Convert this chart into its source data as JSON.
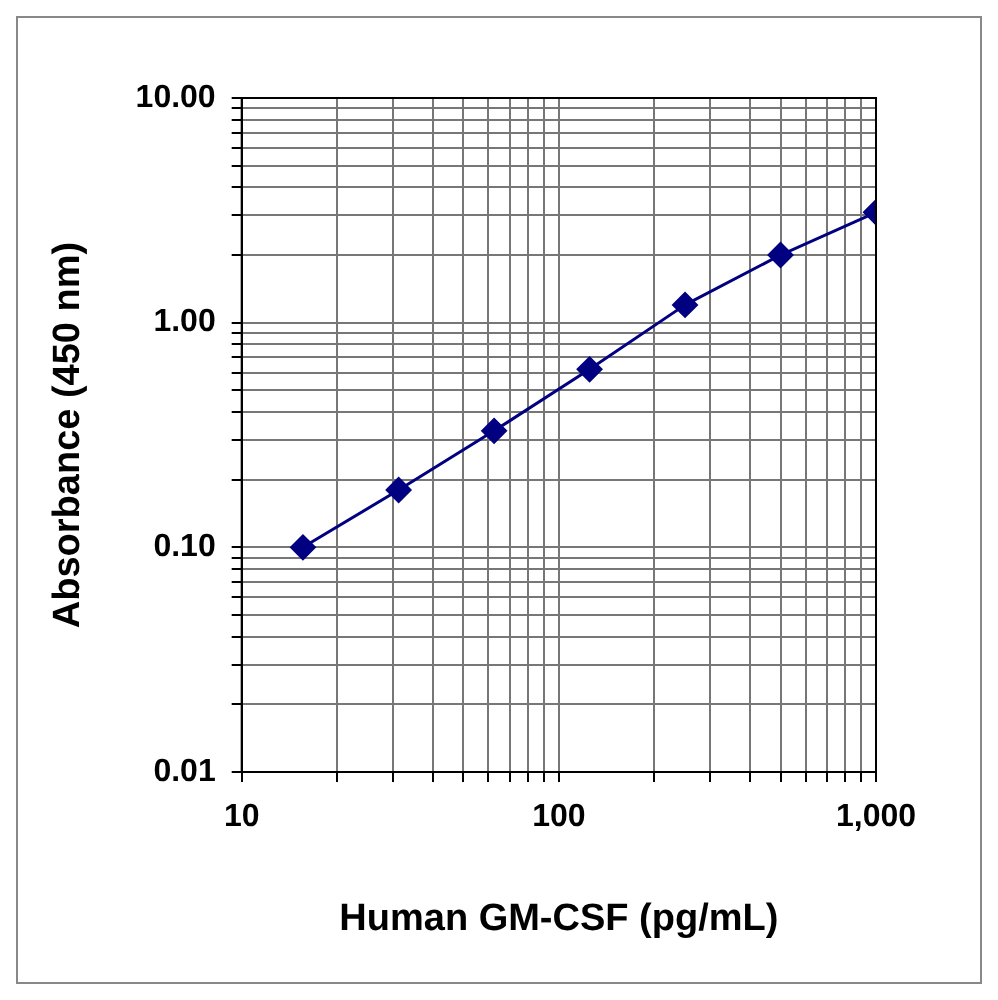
{
  "chart_data": {
    "type": "line",
    "xlabel": "Human GM-CSF (pg/mL)",
    "ylabel": "Absorbance (450 nm)",
    "x": [
      15.6,
      31.25,
      62.5,
      125,
      250,
      500,
      1000
    ],
    "series": [
      {
        "color": "#000080",
        "values": [
          0.1,
          0.18,
          0.33,
          0.62,
          1.2,
          2.0,
          3.1
        ]
      }
    ],
    "log": "xy",
    "xlim": [
      10,
      1000
    ],
    "ylim": [
      0.01,
      10
    ],
    "xticks": [
      {
        "value": 10,
        "label": "10"
      },
      {
        "value": 20,
        "label": null
      },
      {
        "value": 30,
        "label": null
      },
      {
        "value": 40,
        "label": null
      },
      {
        "value": 50,
        "label": null
      },
      {
        "value": 60,
        "label": null
      },
      {
        "value": 70,
        "label": null
      },
      {
        "value": 80,
        "label": null
      },
      {
        "value": 90,
        "label": null
      },
      {
        "value": 100,
        "label": "100"
      },
      {
        "value": 200,
        "label": null
      },
      {
        "value": 300,
        "label": null
      },
      {
        "value": 400,
        "label": null
      },
      {
        "value": 500,
        "label": null
      },
      {
        "value": 600,
        "label": null
      },
      {
        "value": 700,
        "label": null
      },
      {
        "value": 800,
        "label": null
      },
      {
        "value": 900,
        "label": null
      },
      {
        "value": 1000,
        "label": "1,000"
      }
    ],
    "yticks": [
      {
        "value": 0.01,
        "label": "0.01"
      },
      {
        "value": 0.02,
        "label": null
      },
      {
        "value": 0.03,
        "label": null
      },
      {
        "value": 0.04,
        "label": null
      },
      {
        "value": 0.05,
        "label": null
      },
      {
        "value": 0.06,
        "label": null
      },
      {
        "value": 0.07,
        "label": null
      },
      {
        "value": 0.08,
        "label": null
      },
      {
        "value": 0.09,
        "label": null
      },
      {
        "value": 0.1,
        "label": "0.10"
      },
      {
        "value": 0.2,
        "label": null
      },
      {
        "value": 0.3,
        "label": null
      },
      {
        "value": 0.4,
        "label": null
      },
      {
        "value": 0.5,
        "label": null
      },
      {
        "value": 0.6,
        "label": null
      },
      {
        "value": 0.7,
        "label": null
      },
      {
        "value": 0.8,
        "label": null
      },
      {
        "value": 0.9,
        "label": null
      },
      {
        "value": 1,
        "label": "1.00"
      },
      {
        "value": 2,
        "label": null
      },
      {
        "value": 3,
        "label": null
      },
      {
        "value": 4,
        "label": null
      },
      {
        "value": 5,
        "label": null
      },
      {
        "value": 6,
        "label": null
      },
      {
        "value": 7,
        "label": null
      },
      {
        "value": 8,
        "label": null
      },
      {
        "value": 9,
        "label": null
      },
      {
        "value": 10,
        "label": "10.00"
      }
    ],
    "grid": true,
    "marker": "diamond",
    "line_style": "solid",
    "legend": false
  }
}
